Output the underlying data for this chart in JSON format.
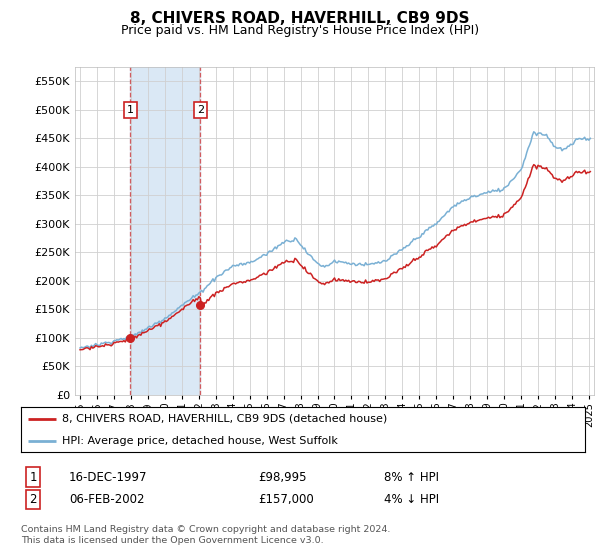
{
  "title": "8, CHIVERS ROAD, HAVERHILL, CB9 9DS",
  "subtitle": "Price paid vs. HM Land Registry's House Price Index (HPI)",
  "yticks": [
    0,
    50000,
    100000,
    150000,
    200000,
    250000,
    300000,
    350000,
    400000,
    450000,
    500000,
    550000
  ],
  "ylim": [
    0,
    575000
  ],
  "xlim": [
    1994.7,
    2025.3
  ],
  "sale1_date": 1997.96,
  "sale1_price": 98995,
  "sale2_date": 2002.09,
  "sale2_price": 157000,
  "legend_line1": "8, CHIVERS ROAD, HAVERHILL, CB9 9DS (detached house)",
  "legend_line2": "HPI: Average price, detached house, West Suffolk",
  "table_row1": [
    "1",
    "16-DEC-1997",
    "£98,995",
    "8% ↑ HPI"
  ],
  "table_row2": [
    "2",
    "06-FEB-2002",
    "£157,000",
    "4% ↓ HPI"
  ],
  "footer": "Contains HM Land Registry data © Crown copyright and database right 2024.\nThis data is licensed under the Open Government Licence v3.0.",
  "line_color_red": "#cc2222",
  "line_color_blue": "#7ab0d4",
  "shade_color": "#dae8f5",
  "vline_color": "#cc2222",
  "background_color": "#ffffff",
  "grid_color": "#d0d0d0",
  "label_box_color": "#cc2222"
}
